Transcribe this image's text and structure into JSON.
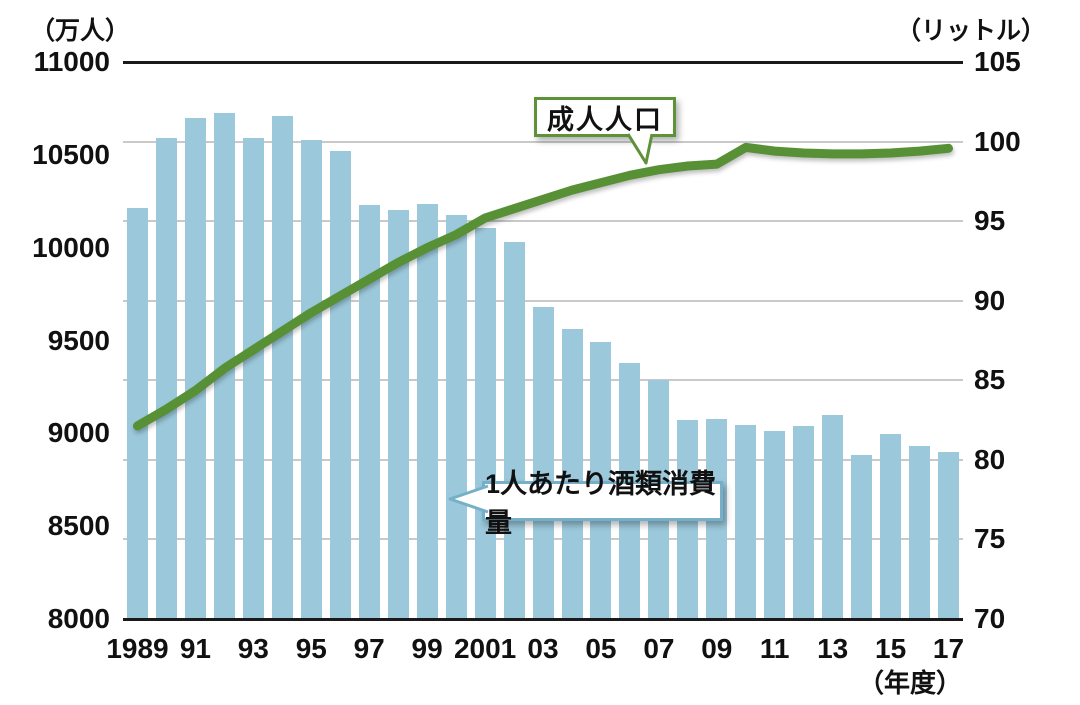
{
  "background": "#ffffff",
  "axes": {
    "left_unit": "（万人）",
    "right_unit": "（リットル）",
    "x_unit": "（年度）"
  },
  "callouts": {
    "line_label": "成人人口",
    "bar_label": "1人あたり酒類消費量"
  },
  "colors": {
    "bar": "#9bc8da",
    "line": "#579035",
    "line_callout_border": "#5f9138",
    "bar_callout_border": "#76b0c8",
    "grid": "#c9c9c9",
    "axis": "#1a1a1a"
  },
  "chart_data": {
    "type": "bar+line",
    "categories": [
      1989,
      1990,
      1991,
      1992,
      1993,
      1994,
      1995,
      1996,
      1997,
      1998,
      1999,
      2000,
      2001,
      2002,
      2003,
      2004,
      2005,
      2006,
      2007,
      2008,
      2009,
      2010,
      2011,
      2012,
      2013,
      2014,
      2015,
      2016,
      2017
    ],
    "x_tick_labels": [
      "1989",
      "91",
      "93",
      "95",
      "97",
      "99",
      "2001",
      "03",
      "05",
      "07",
      "09",
      "11",
      "13",
      "15",
      "17"
    ],
    "x_tick_every": 2,
    "xlabel": "（年度）",
    "left_axis": {
      "unit": "（万人）",
      "min": 8000,
      "max": 11000,
      "tick_step": 500,
      "ticks": [
        "11000",
        "10500",
        "10000",
        "9500",
        "9000",
        "8500",
        "8000"
      ]
    },
    "right_axis": {
      "unit": "（リットル）",
      "min": 70,
      "max": 105,
      "tick_step": 5,
      "ticks": [
        "105",
        "100",
        "95",
        "90",
        "85",
        "80",
        "75",
        "70"
      ]
    },
    "grid": "horizontal lines at right-axis ticks; top and bottom lines solid black",
    "legend_position": "callouts inside plot",
    "series": [
      {
        "name": "成人人口",
        "type": "line",
        "axis": "left",
        "unit": "万人",
        "values": [
          9040,
          9130,
          9230,
          9350,
          9450,
          9550,
          9650,
          9740,
          9830,
          9920,
          10000,
          10070,
          10160,
          10210,
          10260,
          10310,
          10350,
          10390,
          10420,
          10440,
          10450,
          10540,
          10520,
          10510,
          10505,
          10505,
          10510,
          10520,
          10535
        ]
      },
      {
        "name": "1人あたり酒類消費量",
        "type": "bar",
        "axis": "right",
        "unit": "リットル",
        "values": [
          95.8,
          100.2,
          101.5,
          101.8,
          100.2,
          101.6,
          100.1,
          99.4,
          96.0,
          95.7,
          96.1,
          95.4,
          94.6,
          93.7,
          89.6,
          88.2,
          87.4,
          86.1,
          85.0,
          82.5,
          82.6,
          82.2,
          81.8,
          82.1,
          82.8,
          80.3,
          81.6,
          80.9,
          80.5
        ]
      }
    ]
  }
}
